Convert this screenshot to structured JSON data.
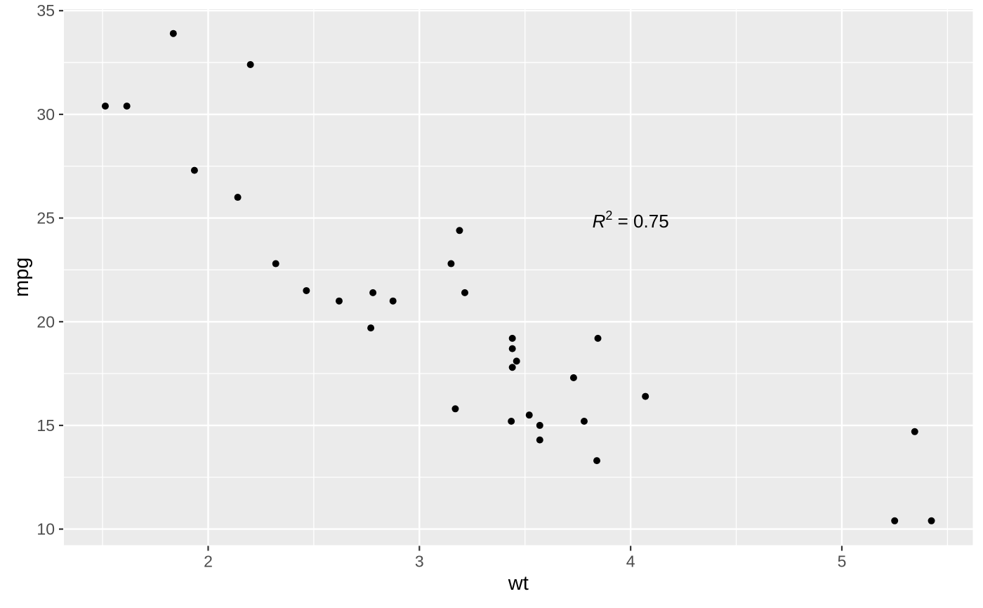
{
  "chart_data": {
    "type": "scatter",
    "title": "",
    "xlabel": "wt",
    "ylabel": "mpg",
    "xlim": [
      1.317,
      5.62
    ],
    "ylim": [
      9.225,
      35.075
    ],
    "x_major_ticks": [
      2,
      3,
      4,
      5
    ],
    "y_major_ticks": [
      10,
      15,
      20,
      25,
      30,
      35
    ],
    "x_minor_ticks": [
      1.5,
      2.5,
      3.5,
      4.5,
      5.5
    ],
    "y_minor_ticks": [
      12.5,
      17.5,
      22.5,
      27.5,
      32.5
    ],
    "grid": "major-and-minor, white on gray panel",
    "legend": "none",
    "annotation": {
      "x": 4.0,
      "y": 24.85,
      "text": "R² = 0.75",
      "base": "R",
      "exponent": "2",
      "rest": " = 0.75"
    },
    "series": [
      {
        "name": "points",
        "points": [
          [
            2.62,
            21.0
          ],
          [
            2.875,
            21.0
          ],
          [
            2.32,
            22.8
          ],
          [
            3.215,
            21.4
          ],
          [
            3.44,
            18.7
          ],
          [
            3.46,
            18.1
          ],
          [
            3.57,
            14.3
          ],
          [
            3.19,
            24.4
          ],
          [
            3.15,
            22.8
          ],
          [
            3.44,
            19.2
          ],
          [
            3.44,
            17.8
          ],
          [
            4.07,
            16.4
          ],
          [
            3.73,
            17.3
          ],
          [
            3.78,
            15.2
          ],
          [
            5.25,
            10.4
          ],
          [
            5.424,
            10.4
          ],
          [
            5.345,
            14.7
          ],
          [
            2.2,
            32.4
          ],
          [
            1.615,
            30.4
          ],
          [
            1.835,
            33.9
          ],
          [
            2.465,
            21.5
          ],
          [
            3.52,
            15.5
          ],
          [
            3.435,
            15.2
          ],
          [
            3.84,
            13.3
          ],
          [
            3.845,
            19.2
          ],
          [
            1.935,
            27.3
          ],
          [
            2.14,
            26.0
          ],
          [
            1.513,
            30.4
          ],
          [
            3.17,
            15.8
          ],
          [
            2.77,
            19.7
          ],
          [
            3.57,
            15.0
          ],
          [
            2.78,
            21.4
          ]
        ]
      }
    ],
    "colors": {
      "panel_bg": "#EBEBEB",
      "outer_bg": "#FFFFFF",
      "gridline": "#FFFFFF",
      "point": "#000000",
      "tick_mark": "#333333",
      "tick_label": "#4D4D4D",
      "axis_title": "#000000",
      "annotation_text": "#000000"
    }
  }
}
